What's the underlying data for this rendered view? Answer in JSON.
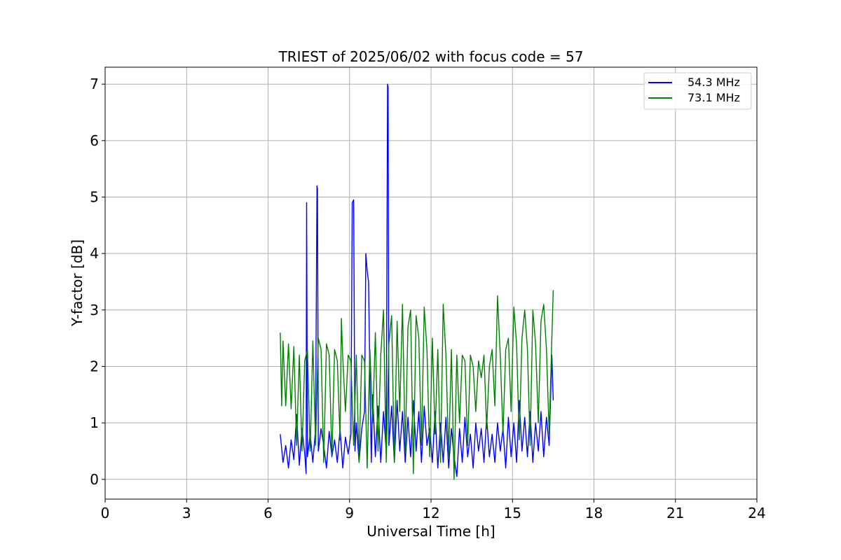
{
  "chart_data": {
    "type": "line",
    "title": "TRIEST of 2025/06/02 with focus code = 57",
    "xlabel": "Universal Time [h]",
    "ylabel": "Y-factor [dB]",
    "xlim": [
      0,
      24
    ],
    "ylim": [
      -0.35,
      7.3
    ],
    "xticks": [
      0,
      3,
      6,
      9,
      12,
      15,
      18,
      21,
      24
    ],
    "yticks": [
      0,
      1,
      2,
      3,
      4,
      5,
      6,
      7
    ],
    "grid": true,
    "legend_position": "top-right",
    "series": [
      {
        "name": "54.3 MHz",
        "color": "#0000ff",
        "x": [
          6.45,
          6.55,
          6.65,
          6.75,
          6.85,
          6.95,
          7.05,
          7.15,
          7.25,
          7.35,
          7.4,
          7.42,
          7.45,
          7.55,
          7.65,
          7.75,
          7.8,
          7.82,
          7.85,
          7.95,
          8.05,
          8.15,
          8.25,
          8.35,
          8.45,
          8.55,
          8.65,
          8.75,
          8.85,
          8.95,
          9.05,
          9.1,
          9.15,
          9.2,
          9.25,
          9.35,
          9.45,
          9.55,
          9.6,
          9.65,
          9.7,
          9.75,
          9.8,
          9.85,
          9.95,
          10.05,
          10.15,
          10.25,
          10.35,
          10.4,
          10.42,
          10.45,
          10.55,
          10.65,
          10.75,
          10.85,
          10.95,
          11.05,
          11.15,
          11.25,
          11.35,
          11.45,
          11.55,
          11.65,
          11.75,
          11.85,
          11.95,
          12.05,
          12.15,
          12.25,
          12.35,
          12.45,
          12.55,
          12.65,
          12.75,
          12.85,
          12.95,
          13.05,
          13.15,
          13.25,
          13.35,
          13.45,
          13.55,
          13.65,
          13.75,
          13.85,
          13.95,
          14.05,
          14.15,
          14.25,
          14.35,
          14.45,
          14.55,
          14.65,
          14.75,
          14.85,
          14.95,
          15.05,
          15.15,
          15.25,
          15.35,
          15.45,
          15.55,
          15.65,
          15.75,
          15.85,
          15.95,
          16.05,
          16.15,
          16.25,
          16.35,
          16.45,
          16.5
        ],
        "y": [
          0.8,
          0.3,
          0.6,
          0.2,
          0.7,
          0.35,
          1.15,
          0.25,
          0.9,
          0.45,
          0.1,
          4.9,
          0.4,
          0.8,
          0.3,
          0.9,
          5.2,
          5.15,
          0.5,
          0.9,
          0.6,
          0.2,
          0.85,
          0.4,
          0.7,
          0.3,
          0.9,
          0.2,
          0.75,
          0.45,
          0.8,
          4.9,
          4.95,
          0.5,
          1.0,
          0.3,
          0.9,
          1.2,
          4.0,
          3.7,
          3.5,
          1.8,
          0.3,
          1.5,
          0.4,
          1.3,
          0.3,
          1.2,
          0.5,
          7.0,
          6.95,
          0.6,
          1.3,
          0.3,
          1.4,
          0.5,
          1.2,
          0.3,
          1.1,
          0.4,
          1.4,
          0.5,
          1.2,
          0.3,
          1.3,
          0.6,
          0.9,
          0.3,
          1.2,
          0.2,
          1.0,
          0.3,
          1.1,
          0.2,
          0.9,
          0.4,
          0.05,
          0.9,
          0.3,
          1.1,
          0.4,
          0.8,
          0.2,
          1.0,
          0.5,
          0.9,
          0.3,
          1.1,
          0.4,
          0.8,
          0.3,
          1.0,
          0.5,
          0.9,
          0.2,
          1.1,
          0.4,
          1.0,
          0.3,
          1.4,
          0.5,
          1.1,
          0.4,
          1.2,
          0.3,
          1.0,
          0.5,
          1.2,
          0.4,
          1.1,
          0.6,
          2.2,
          1.4
        ]
      },
      {
        "name": "73.1 MHz",
        "color": "#008000",
        "x": [
          6.45,
          6.5,
          6.55,
          6.65,
          6.75,
          6.85,
          6.95,
          7.05,
          7.15,
          7.25,
          7.35,
          7.45,
          7.55,
          7.65,
          7.75,
          7.85,
          7.95,
          8.05,
          8.15,
          8.25,
          8.35,
          8.45,
          8.55,
          8.65,
          8.7,
          8.75,
          8.85,
          8.95,
          9.05,
          9.15,
          9.25,
          9.35,
          9.45,
          9.55,
          9.65,
          9.75,
          9.85,
          9.95,
          10.05,
          10.15,
          10.25,
          10.35,
          10.45,
          10.55,
          10.65,
          10.75,
          10.85,
          10.95,
          11.05,
          11.15,
          11.25,
          11.35,
          11.45,
          11.55,
          11.65,
          11.75,
          11.85,
          11.95,
          12.05,
          12.15,
          12.25,
          12.35,
          12.45,
          12.55,
          12.65,
          12.75,
          12.85,
          12.95,
          13.05,
          13.15,
          13.25,
          13.35,
          13.45,
          13.55,
          13.65,
          13.75,
          13.85,
          13.95,
          14.05,
          14.15,
          14.25,
          14.35,
          14.45,
          14.55,
          14.65,
          14.75,
          14.85,
          14.95,
          15.05,
          15.15,
          15.25,
          15.35,
          15.45,
          15.55,
          15.65,
          15.75,
          15.85,
          15.95,
          16.05,
          16.15,
          16.25,
          16.35,
          16.45,
          16.5
        ],
        "y": [
          2.6,
          1.3,
          2.45,
          1.3,
          2.4,
          1.25,
          2.35,
          0.6,
          2.2,
          0.5,
          2.1,
          2.3,
          0.5,
          2.45,
          0.6,
          2.5,
          2.3,
          0.3,
          2.4,
          2.2,
          0.4,
          2.3,
          2.1,
          0.7,
          2.85,
          2.15,
          1.2,
          2.2,
          2.1,
          0.6,
          2.2,
          0.3,
          2.2,
          2.1,
          0.2,
          2.3,
          1.0,
          2.6,
          0.5,
          2.2,
          3.0,
          0.3,
          2.4,
          2.9,
          0.3,
          2.8,
          1.2,
          3.1,
          0.5,
          2.7,
          3.0,
          0.1,
          2.9,
          2.5,
          0.6,
          3.05,
          2.3,
          0.4,
          2.5,
          0.8,
          2.3,
          0.3,
          3.1,
          2.2,
          0.4,
          2.3,
          0.0,
          2.2,
          1.0,
          2.2,
          2.1,
          0.6,
          2.2,
          2.0,
          1.2,
          2.1,
          1.8,
          2.2,
          0.9,
          2.0,
          2.3,
          1.3,
          3.25,
          2.2,
          0.8,
          2.3,
          2.5,
          1.2,
          3.05,
          2.4,
          0.7,
          2.5,
          3.0,
          2.3,
          0.6,
          3.0,
          2.4,
          1.0,
          2.8,
          3.1,
          2.3,
          0.8,
          2.5,
          3.35
        ]
      }
    ]
  }
}
